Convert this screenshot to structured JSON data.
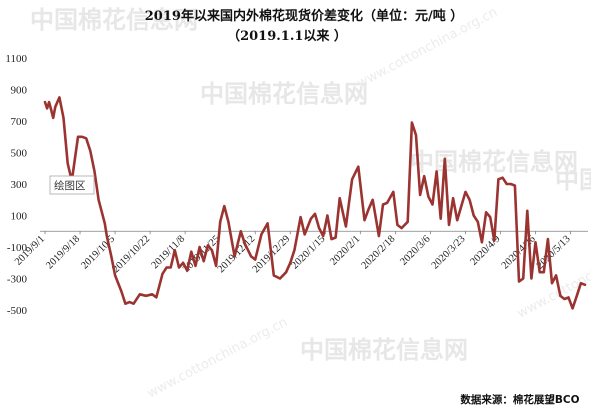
{
  "chart_data": {
    "type": "line",
    "title": "2019年以来国内外棉花现货价差变化（单位：元/吨 ）",
    "subtitle": "（2019.1.1以来   ）",
    "ylim": [
      -500,
      1100
    ],
    "yticks": [
      -500,
      -300,
      -100,
      100,
      300,
      500,
      700,
      900,
      1100
    ],
    "ytick_labels": [
      "-500",
      "-300",
      "-100",
      "100",
      "300",
      "500",
      "700",
      "900",
      "1100"
    ],
    "xlabels": [
      "2019/9/1",
      "2019/9/18",
      "2019/10/5",
      "2019/10/22",
      "2019/11/8",
      "2019/11/25",
      "2019/12/12",
      "2019/12/29",
      "2020/1/15",
      "2020/2/1",
      "2020/2/18",
      "2020/3/6",
      "2020/3/23",
      "2020/4/9",
      "2020/4/26",
      "2020/5/13"
    ],
    "grid": false,
    "line_color": "#9b3431",
    "series": [
      {
        "name": "",
        "x": [
          "2019/9/1",
          "2019/9/2",
          "2019/9/3",
          "2019/9/4",
          "2019/9/5",
          "2019/9/6",
          "2019/9/8",
          "2019/9/10",
          "2019/9/12",
          "2019/9/14",
          "2019/9/17",
          "2019/9/19",
          "2019/9/21",
          "2019/9/23",
          "2019/9/25",
          "2019/9/27",
          "2019/9/30",
          "2019/10/1",
          "2019/10/3",
          "2019/10/5",
          "2019/10/8",
          "2019/10/10",
          "2019/10/12",
          "2019/10/14",
          "2019/10/17",
          "2019/10/20",
          "2019/10/23",
          "2019/10/25",
          "2019/10/28",
          "2019/10/30",
          "2019/11/1",
          "2019/11/3",
          "2019/11/5",
          "2019/11/7",
          "2019/11/9",
          "2019/11/11",
          "2019/11/13",
          "2019/11/15",
          "2019/11/17",
          "2019/11/19",
          "2019/11/21",
          "2019/11/23",
          "2019/11/25",
          "2019/11/27",
          "2019/11/29",
          "2019/12/2",
          "2019/12/5",
          "2019/12/7",
          "2019/12/10",
          "2019/12/12",
          "2019/12/15",
          "2019/12/18",
          "2019/12/21",
          "2019/12/24",
          "2019/12/27",
          "2019/12/29",
          "2019/12/31",
          "2020/1/3",
          "2020/1/5",
          "2020/1/8",
          "2020/1/10",
          "2020/1/12",
          "2020/1/14",
          "2020/1/16",
          "2020/1/18",
          "2020/1/20",
          "2020/1/22",
          "2020/1/25",
          "2020/1/28",
          "2020/1/31",
          "2020/2/3",
          "2020/2/5",
          "2020/2/7",
          "2020/2/10",
          "2020/2/12",
          "2020/2/14",
          "2020/2/17",
          "2020/2/19",
          "2020/2/21",
          "2020/2/24",
          "2020/2/26",
          "2020/2/28",
          "2020/3/1",
          "2020/3/3",
          "2020/3/5",
          "2020/3/7",
          "2020/3/9",
          "2020/3/11",
          "2020/3/13",
          "2020/3/15",
          "2020/3/17",
          "2020/3/19",
          "2020/3/21",
          "2020/3/23",
          "2020/3/25",
          "2020/3/27",
          "2020/3/29",
          "2020/3/31",
          "2020/4/2",
          "2020/4/4",
          "2020/4/6",
          "2020/4/8",
          "2020/4/10",
          "2020/4/12",
          "2020/4/14",
          "2020/4/16",
          "2020/4/18",
          "2020/4/20",
          "2020/4/22",
          "2020/4/24",
          "2020/4/26",
          "2020/4/28",
          "2020/4/30",
          "2020/5/2",
          "2020/5/4",
          "2020/5/6",
          "2020/5/8",
          "2020/5/10",
          "2020/5/12",
          "2020/5/14",
          "2020/5/16",
          "2020/5/18",
          "2020/5/20"
        ],
        "values": [
          820,
          780,
          820,
          770,
          720,
          790,
          850,
          720,
          430,
          320,
          600,
          600,
          590,
          510,
          380,
          200,
          50,
          -30,
          -150,
          -280,
          -380,
          -460,
          -450,
          -460,
          -400,
          -410,
          -400,
          -420,
          -270,
          -230,
          -230,
          -120,
          -230,
          -200,
          -250,
          -130,
          -220,
          -100,
          -190,
          -90,
          -120,
          -220,
          60,
          160,
          60,
          -160,
          0,
          -80,
          -160,
          -180,
          -20,
          50,
          -280,
          -300,
          -260,
          -200,
          -120,
          90,
          -20,
          80,
          110,
          20,
          -30,
          100,
          -50,
          -40,
          210,
          30,
          330,
          410,
          70,
          140,
          200,
          -30,
          170,
          180,
          250,
          40,
          20,
          60,
          690,
          610,
          230,
          350,
          220,
          170,
          380,
          80,
          460,
          40,
          210,
          70,
          160,
          250,
          200,
          100,
          60,
          -70,
          120,
          90,
          -60,
          330,
          340,
          300,
          300,
          290,
          -320,
          -300,
          130,
          -300,
          -70,
          -260,
          -260,
          -50,
          -330,
          -280,
          -410,
          -430,
          -420,
          -490,
          -410,
          -330,
          -340
        ]
      }
    ]
  },
  "callout": "绘图区",
  "source": "数据来源：棉花展望BCO",
  "watermark": {
    "text": "中国棉花信息网",
    "url": "www.cottonchina.org.cn"
  }
}
